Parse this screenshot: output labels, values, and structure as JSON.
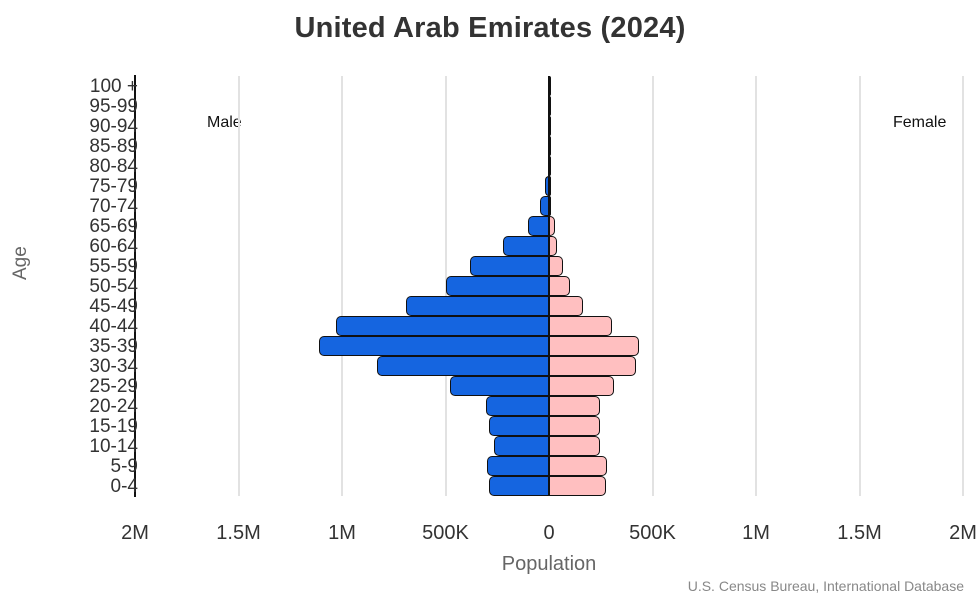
{
  "chart_data": {
    "type": "bar",
    "orientation": "horizontal",
    "subtype": "population-pyramid",
    "title": "United Arab Emirates (2024)",
    "xlabel": "Population",
    "ylabel": "Age",
    "source": "U.S. Census Bureau, International Database",
    "categories": [
      "0-4",
      "5-9",
      "10-14",
      "15-19",
      "20-24",
      "25-29",
      "30-34",
      "35-39",
      "40-44",
      "45-49",
      "50-54",
      "55-59",
      "60-64",
      "65-69",
      "70-74",
      "75-79",
      "80-84",
      "85-89",
      "90-94",
      "95-99",
      "100 +"
    ],
    "series": [
      {
        "name": "Male",
        "color": "#1565e0",
        "side": "left",
        "values": [
          290000,
          300000,
          265000,
          290000,
          305000,
          480000,
          830000,
          1110000,
          1030000,
          690000,
          500000,
          380000,
          220000,
          100000,
          45000,
          20000,
          6000,
          3000,
          1500,
          500,
          100
        ]
      },
      {
        "name": "Female",
        "color": "#ffbfc0",
        "side": "right",
        "values": [
          275000,
          280000,
          245000,
          245000,
          245000,
          315000,
          420000,
          435000,
          305000,
          165000,
          100000,
          70000,
          40000,
          30000,
          12000,
          8000,
          4000,
          2000,
          1000,
          400,
          100
        ]
      }
    ],
    "xticks": [
      "2M",
      "1.5M",
      "1M",
      "500K",
      "0",
      "500K",
      "1M",
      "1.5M",
      "2M"
    ],
    "xtick_values": [
      -2000000,
      -1500000,
      -1000000,
      -500000,
      0,
      500000,
      1000000,
      1500000,
      2000000
    ],
    "xlim": [
      -2000000,
      2000000
    ],
    "grid": true,
    "annotations": [
      "Male",
      "Female"
    ]
  },
  "labels": {
    "title": "United Arab Emirates (2024)",
    "male": "Male",
    "female": "Female",
    "xlabel": "Population",
    "ylabel": "Age",
    "source": "U.S. Census Bureau, International Database"
  }
}
